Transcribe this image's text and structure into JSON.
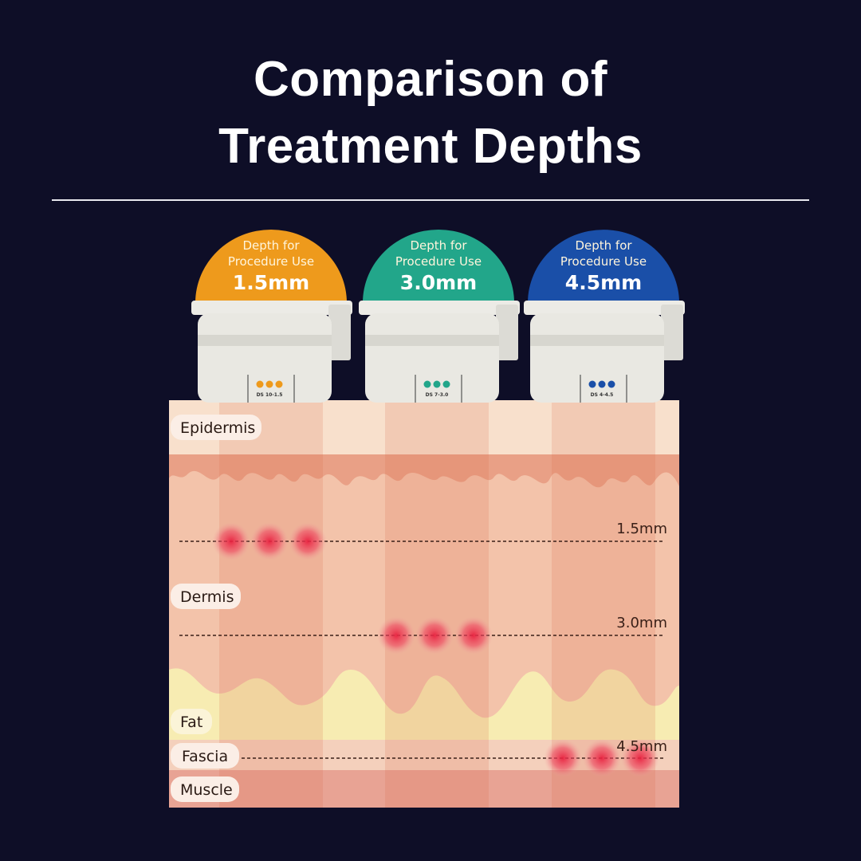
{
  "title": {
    "line1": "Comparison of",
    "line2": "Treatment Depths"
  },
  "cartridges": [
    {
      "heading_line1": "Depth for",
      "heading_line2": "Procedure Use",
      "depth": "1.5mm",
      "code": "DS 10-1.5",
      "color": "#ee9a1c"
    },
    {
      "heading_line1": "Depth for",
      "heading_line2": "Procedure Use",
      "depth": "3.0mm",
      "code": "DS 7-3.0",
      "color": "#22a68a"
    },
    {
      "heading_line1": "Depth for",
      "heading_line2": "Procedure Use",
      "depth": "4.5mm",
      "code": "DS 4-4.5",
      "color": "#1a4fa8"
    }
  ],
  "layers": {
    "epidermis": "Epidermis",
    "dermis": "Dermis",
    "fat": "Fat",
    "fascia": "Fascia",
    "muscle": "Muscle"
  },
  "depth_markers": [
    "1.5mm",
    "3.0mm",
    "4.5mm"
  ],
  "colors": {
    "background": "#0e0e27",
    "focal_point": "#e8334f"
  }
}
